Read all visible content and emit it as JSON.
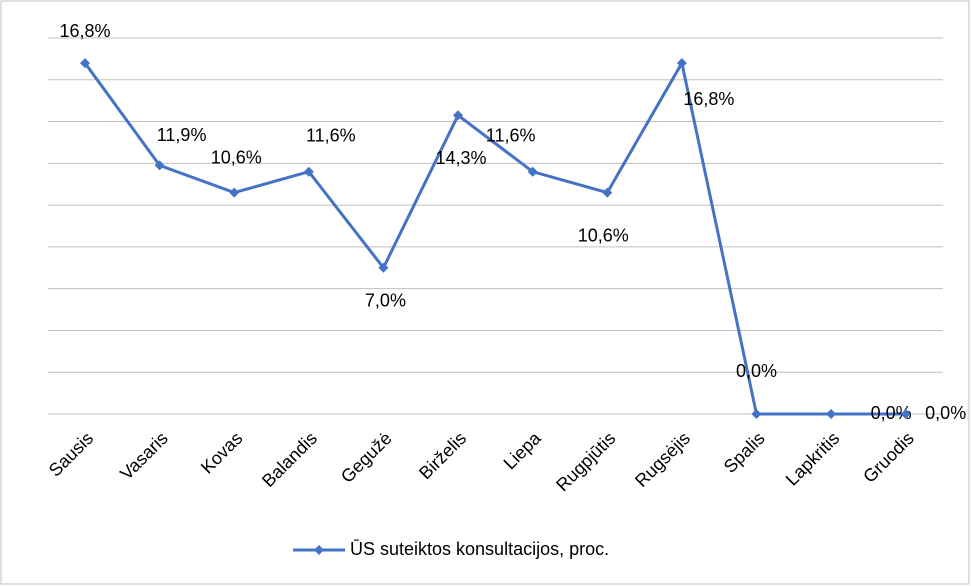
{
  "chart_data": {
    "type": "line",
    "categories": [
      "Sausis",
      "Vasaris",
      "Kovas",
      "Balandis",
      "Gegužė",
      "Birželis",
      "Liepa",
      "Rugpjūtis",
      "Rugsėjis",
      "Spalis",
      "Lapkritis",
      "Gruodis"
    ],
    "series": [
      {
        "name": "ŪS suteiktos konsultacijos, proc.",
        "color": "#4472c4",
        "values": [
          16.8,
          11.9,
          10.6,
          11.6,
          7.0,
          14.3,
          11.6,
          10.6,
          16.8,
          0,
          0,
          0
        ],
        "value_labels": [
          "16,8%",
          "11,9%",
          "10,6%",
          "11,6%",
          "7,0%",
          "14,3%",
          "11,6%",
          "10,6%",
          "16,8%",
          "0,0%",
          "0,0%",
          "0,0%"
        ]
      }
    ],
    "ylim": [
      0,
      18
    ],
    "yticks": [
      0,
      2,
      4,
      6,
      8,
      10,
      12,
      14,
      16,
      18
    ],
    "grid": true,
    "legend": "bottom"
  }
}
